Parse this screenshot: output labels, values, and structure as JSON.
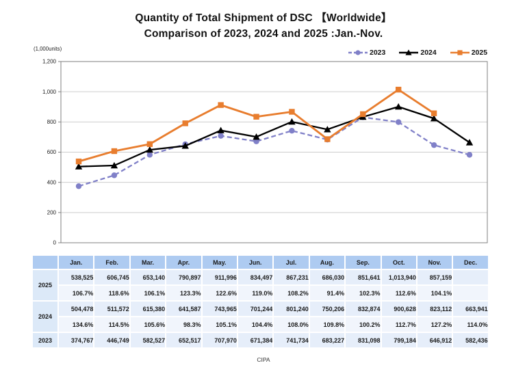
{
  "title": {
    "line1": "Quantity of Total Shipment of DSC 【Worldwide】",
    "line2": "Comparison of 2023, 2024 and 2025 :Jan.-Nov."
  },
  "unit_label": "(1,000units)",
  "footer_label": "CIPA",
  "colors": {
    "series_2023": "#8080C8",
    "series_2024": "#000000",
    "series_2025": "#E87D2E",
    "grid_line": "#CCCCCC",
    "axis_line": "#7F7F7F",
    "tick_text": "#222222",
    "table_header_bg": "#AECBF1",
    "table_label_bg": "#DCE9F8",
    "table_value_bg": "#E6EEFA",
    "table_pct_bg": "#F1F5FC"
  },
  "chart_data": {
    "type": "line",
    "title": "Quantity of Total Shipment of DSC 【Worldwide】 Comparison of 2023, 2024 and 2025 :Jan.-Nov.",
    "categories": [
      "Jan.",
      "Feb.",
      "Mar.",
      "Apr.",
      "May.",
      "Jun.",
      "Jul.",
      "Aug.",
      "Sep.",
      "Oct.",
      "Nov.",
      "Dec."
    ],
    "ylabel": "(1,000units)",
    "ylim": [
      0,
      1200
    ],
    "ytick_interval": 200,
    "ytick_labels": [
      "0",
      "200",
      "400",
      "600",
      "800",
      "1,000",
      "1,200"
    ],
    "grid": true,
    "legend_position": "top-right",
    "series": [
      {
        "name": "2023",
        "color": "#8080C8",
        "line_style": "dashed",
        "marker": "circle",
        "values": [
          374.767,
          446.749,
          582.527,
          652.517,
          707.97,
          671.384,
          741.734,
          683.227,
          831.098,
          799.184,
          646.912,
          582.436
        ]
      },
      {
        "name": "2024",
        "color": "#000000",
        "line_style": "solid",
        "marker": "triangle",
        "values": [
          504.478,
          511.572,
          615.38,
          641.587,
          743.965,
          701.244,
          801.24,
          750.206,
          832.874,
          900.628,
          823.112,
          663.941
        ]
      },
      {
        "name": "2025",
        "color": "#E87D2E",
        "line_style": "solid",
        "marker": "square",
        "values": [
          538.525,
          606.745,
          653.14,
          790.897,
          911.996,
          834.497,
          867.231,
          686.03,
          851.641,
          1013.94,
          857.159,
          null
        ]
      }
    ]
  },
  "table": {
    "columns": [
      "",
      "Jan.",
      "Feb.",
      "Mar.",
      "Apr.",
      "May.",
      "Jun.",
      "Jul.",
      "Aug.",
      "Sep.",
      "Oct.",
      "Nov.",
      "Dec."
    ],
    "groups": [
      {
        "label": "2025",
        "values": [
          "538,525",
          "606,745",
          "653,140",
          "790,897",
          "911,996",
          "834,497",
          "867,231",
          "686,030",
          "851,641",
          "1,013,940",
          "857,159",
          ""
        ],
        "pct": [
          "106.7%",
          "118.6%",
          "106.1%",
          "123.3%",
          "122.6%",
          "119.0%",
          "108.2%",
          "91.4%",
          "102.3%",
          "112.6%",
          "104.1%",
          ""
        ]
      },
      {
        "label": "2024",
        "values": [
          "504,478",
          "511,572",
          "615,380",
          "641,587",
          "743,965",
          "701,244",
          "801,240",
          "750,206",
          "832,874",
          "900,628",
          "823,112",
          "663,941"
        ],
        "pct": [
          "134.6%",
          "114.5%",
          "105.6%",
          "98.3%",
          "105.1%",
          "104.4%",
          "108.0%",
          "109.8%",
          "100.2%",
          "112.7%",
          "127.2%",
          "114.0%"
        ]
      },
      {
        "label": "2023",
        "values": [
          "374,767",
          "446,749",
          "582,527",
          "652,517",
          "707,970",
          "671,384",
          "741,734",
          "683,227",
          "831,098",
          "799,184",
          "646,912",
          "582,436"
        ],
        "pct": null
      }
    ]
  }
}
